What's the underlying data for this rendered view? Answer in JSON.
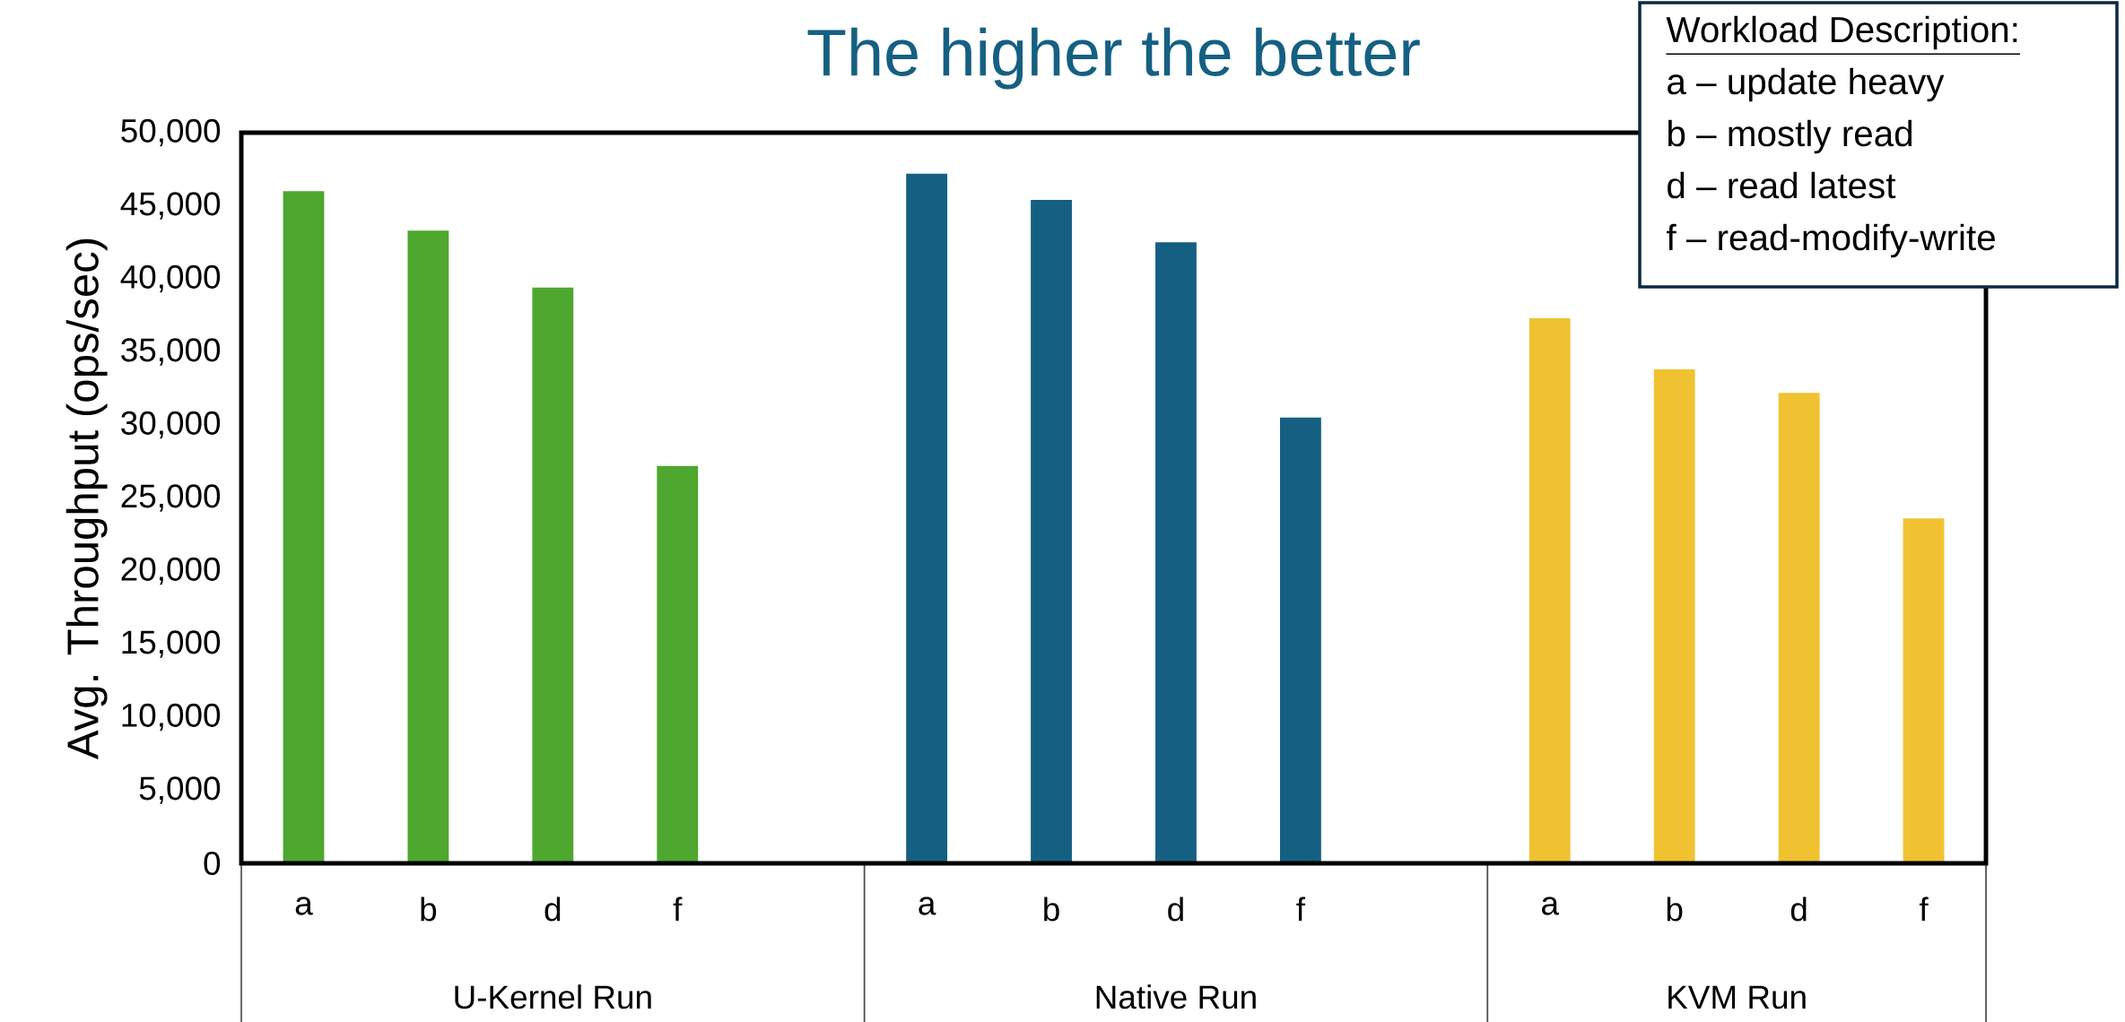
{
  "chart_data": {
    "type": "bar",
    "title": "The higher the better",
    "ylabel": "Avg. Throughput (ops/sec)",
    "categories": [
      "a",
      "b",
      "d",
      "f",
      null,
      "a",
      "b",
      "d",
      "f",
      null,
      "a",
      "b",
      "d",
      "f"
    ],
    "values": [
      46000,
      43300,
      39400,
      27200,
      null,
      47200,
      45400,
      42500,
      30500,
      null,
      37300,
      33800,
      32200,
      23600
    ],
    "colors": [
      "#4ea72e",
      "#4ea72e",
      "#4ea72e",
      "#4ea72e",
      null,
      "#156082",
      "#156082",
      "#156082",
      "#156082",
      null,
      "#f0c232",
      "#f0c232",
      "#f0c232",
      "#f0c232"
    ],
    "ylim": [
      0,
      50000
    ],
    "yticks": [
      {
        "value": 0,
        "label": "0"
      },
      {
        "value": 5000,
        "label": "5,000"
      },
      {
        "value": 10000,
        "label": "10,000"
      },
      {
        "value": 15000,
        "label": "15,000"
      },
      {
        "value": 20000,
        "label": "20,000"
      },
      {
        "value": 25000,
        "label": "25,000"
      },
      {
        "value": 30000,
        "label": "30,000"
      },
      {
        "value": 35000,
        "label": "35,000"
      },
      {
        "value": 40000,
        "label": "40,000"
      },
      {
        "value": 45000,
        "label": "45,000"
      },
      {
        "value": 50000,
        "label": "50,000"
      }
    ],
    "annotations": [
      "U-Kernel Run",
      "Native Run",
      "KVM Run",
      "Workload Description:",
      "a – update heavy",
      "b – mostly read",
      "d – read latest",
      "f – read-modify-write"
    ]
  }
}
